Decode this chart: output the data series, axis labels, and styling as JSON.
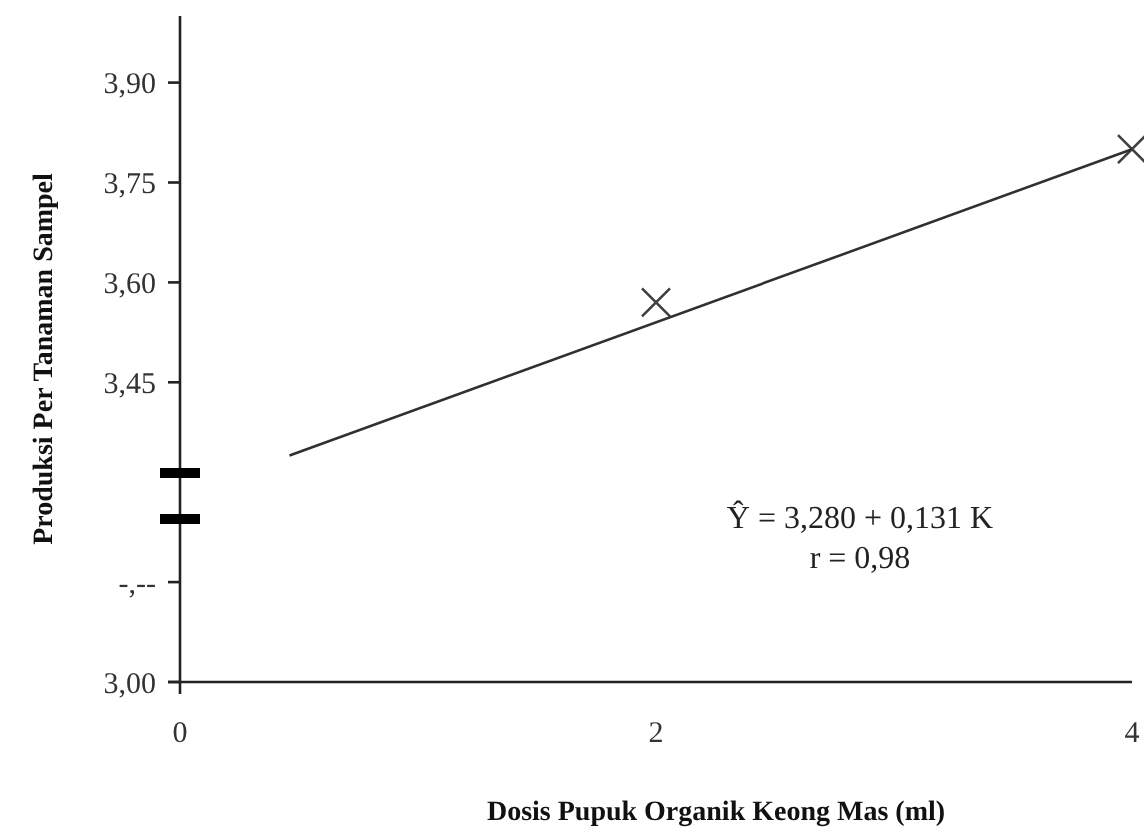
{
  "chart_data": {
    "type": "scatter",
    "xlabel": "Dosis Pupuk Organik Keong Mas (ml)",
    "ylabel": "Produksi Per Tanaman Sampel",
    "xlim": [
      0,
      4
    ],
    "xticks": [
      0,
      2,
      4
    ],
    "ylim": [
      3,
      4
    ],
    "yticks": [
      {
        "value": 3,
        "label": "3,00"
      },
      {
        "value": 3.15,
        "label": "-,--"
      },
      {
        "value": 3.45,
        "label": "3,45"
      },
      {
        "value": 3.6,
        "label": "3,60"
      },
      {
        "value": 3.75,
        "label": "3,75"
      },
      {
        "value": 3.9,
        "label": "3,90"
      }
    ],
    "series": [
      {
        "color": "#404040",
        "marker": "cross",
        "x": [
          2,
          4
        ],
        "values": [
          3.57,
          3.8
        ]
      },
      {
        "type": "line",
        "color": "#303030",
        "line_style": "solid",
        "marker": "none",
        "x": [
          0.46,
          4
        ],
        "values": [
          3.34,
          3.8
        ]
      }
    ],
    "annotations": [
      {
        "text": "Ŷ = 3,280 + 0,131 K"
      },
      {
        "text": "r = 0,98"
      }
    ],
    "grid": false
  }
}
